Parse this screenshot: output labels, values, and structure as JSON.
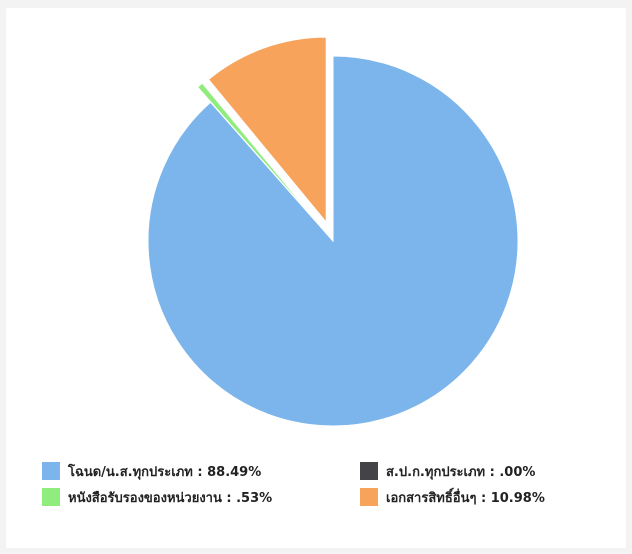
{
  "chart_data": {
    "type": "pie",
    "title": "",
    "slices": [
      {
        "label": "โฉนด/น.ส.ทุกประเภท",
        "value": 88.49,
        "legend_text": "โฉนด/น.ส.ทุกประเภท : 88.49%",
        "color": "#7cb5ec",
        "exploded": false
      },
      {
        "label": "ส.ป.ก.ทุกประเภท",
        "value": 0.0,
        "legend_text": "ส.ป.ก.ทุกประเภท : .00%",
        "color": "#434348",
        "exploded": false
      },
      {
        "label": "หนังสือรับรองของหน่วยงาน",
        "value": 0.53,
        "legend_text": "หนังสือรับรองของหน่วยงาน : .53%",
        "color": "#90ed7d",
        "exploded": true
      },
      {
        "label": "เอกสารสิทธิ์อื่นๆ",
        "value": 10.98,
        "legend_text": "เอกสารสิทธิ์อื่นๆ : 10.98%",
        "color": "#f7a35c",
        "exploded": true
      }
    ],
    "legend_position": "bottom",
    "legend_order": [
      [
        0,
        1
      ],
      [
        2,
        3
      ]
    ]
  }
}
